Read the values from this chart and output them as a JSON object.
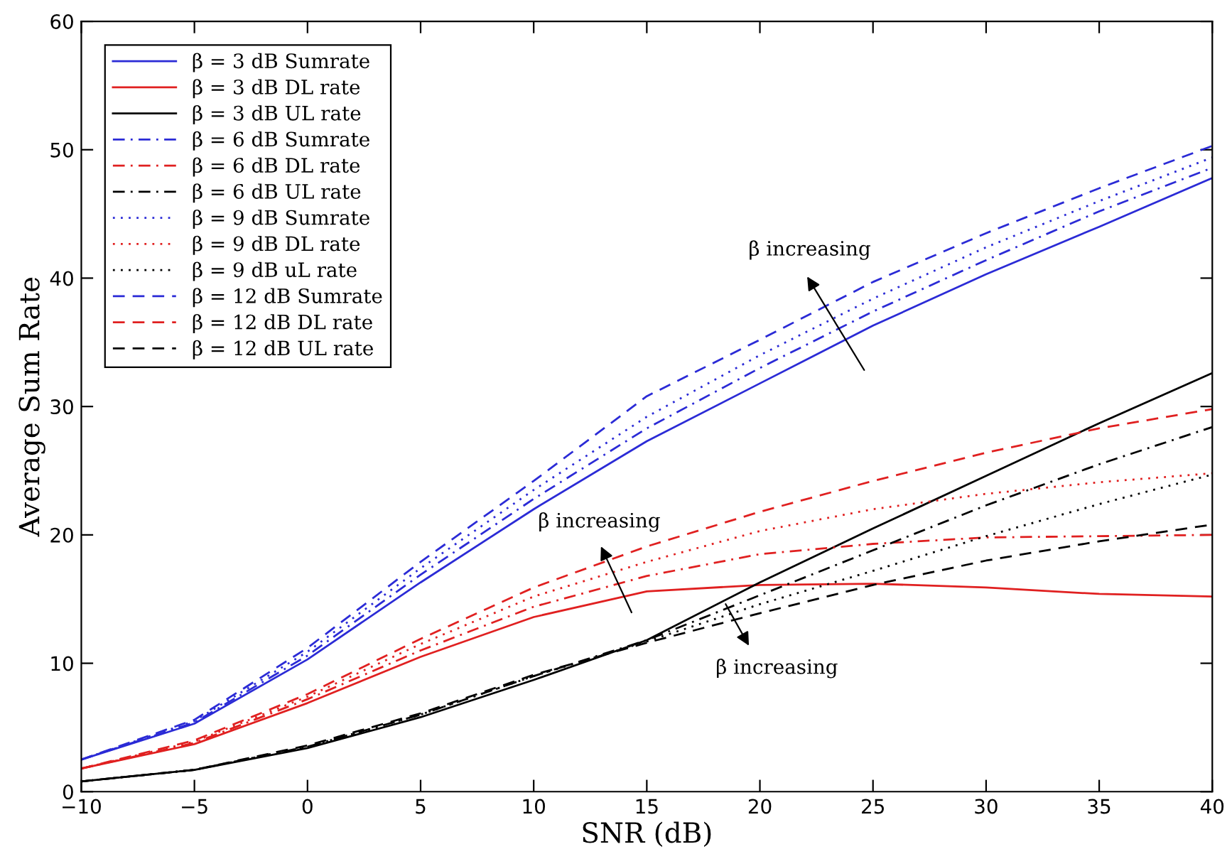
{
  "chart_data": {
    "type": "line",
    "xlabel": "SNR (dB)",
    "ylabel": "Average Sum Rate",
    "x": [
      -10,
      -5,
      0,
      5,
      10,
      15,
      20,
      25,
      30,
      35,
      40
    ],
    "xlim": [
      -10,
      40
    ],
    "xticks": [
      -10,
      -5,
      0,
      5,
      10,
      15,
      20,
      25,
      30,
      35,
      40
    ],
    "ylim": [
      0,
      60
    ],
    "yticks": [
      0,
      10,
      20,
      30,
      40,
      50,
      60
    ],
    "grid": false,
    "legend": "top left",
    "marker": "none",
    "series": [
      {
        "name": "β = 3 dB Sumrate",
        "color": "#2b2bd6",
        "line_style": "solid",
        "values": [
          2.5,
          5.3,
          10.3,
          16.3,
          22.0,
          27.3,
          31.8,
          36.3,
          40.3,
          44.0,
          47.8
        ]
      },
      {
        "name": "β = 3 dB DL rate",
        "color": "#e02020",
        "line_style": "solid",
        "values": [
          1.8,
          3.7,
          6.9,
          10.5,
          13.6,
          15.6,
          16.1,
          16.2,
          15.9,
          15.4,
          15.2
        ]
      },
      {
        "name": "β = 3 dB UL rate",
        "color": "#000000",
        "line_style": "solid",
        "values": [
          0.8,
          1.7,
          3.4,
          5.8,
          8.7,
          11.8,
          16.3,
          20.5,
          24.6,
          28.7,
          32.6
        ]
      },
      {
        "name": "β = 6 dB Sumrate",
        "color": "#2b2bd6",
        "line_style": "dashdot",
        "values": [
          2.5,
          5.4,
          10.6,
          16.9,
          22.8,
          28.3,
          33.0,
          37.4,
          41.4,
          45.2,
          48.6
        ]
      },
      {
        "name": "β = 6 dB DL rate",
        "color": "#e02020",
        "line_style": "dashdot",
        "values": [
          1.8,
          3.8,
          7.2,
          11.0,
          14.4,
          16.8,
          18.5,
          19.3,
          19.8,
          19.9,
          20.0
        ]
      },
      {
        "name": "β = 6 dB UL rate",
        "color": "#000000",
        "line_style": "dashdot",
        "values": [
          0.8,
          1.7,
          3.5,
          6.0,
          9.0,
          11.8,
          15.3,
          18.8,
          22.3,
          25.5,
          28.4
        ]
      },
      {
        "name": "β = 9 dB Sumrate",
        "color": "#2b2bd6",
        "line_style": "dotted",
        "values": [
          2.5,
          5.5,
          10.9,
          17.4,
          23.5,
          29.2,
          34.0,
          38.4,
          42.4,
          46.0,
          49.4
        ]
      },
      {
        "name": "β = 9 dB DL rate",
        "color": "#e02020",
        "line_style": "dotted",
        "values": [
          1.8,
          3.9,
          7.4,
          11.5,
          15.2,
          17.9,
          20.3,
          22.0,
          23.2,
          24.1,
          24.8
        ]
      },
      {
        "name": "β = 9 dB uL rate",
        "color": "#000000",
        "line_style": "dotted",
        "values": [
          0.8,
          1.7,
          3.5,
          6.0,
          9.0,
          11.7,
          14.6,
          17.2,
          19.9,
          22.4,
          24.7
        ]
      },
      {
        "name": "β = 12 dB Sumrate",
        "color": "#2b2bd6",
        "line_style": "dashed",
        "values": [
          2.5,
          5.6,
          11.2,
          17.9,
          24.2,
          30.8,
          35.2,
          39.7,
          43.5,
          47.0,
          50.3
        ]
      },
      {
        "name": "β = 12 dB DL rate",
        "color": "#e02020",
        "line_style": "dashed",
        "values": [
          1.8,
          4.0,
          7.6,
          11.9,
          15.9,
          19.1,
          21.8,
          24.2,
          26.4,
          28.3,
          29.8
        ]
      },
      {
        "name": "β = 12 dB UL rate",
        "color": "#000000",
        "line_style": "dashed",
        "values": [
          0.8,
          1.7,
          3.6,
          6.1,
          9.1,
          11.6,
          13.9,
          16.1,
          18.0,
          19.5,
          20.8
        ]
      }
    ],
    "annotations": [
      "β increasing",
      "β increasing",
      "β increasing"
    ]
  }
}
